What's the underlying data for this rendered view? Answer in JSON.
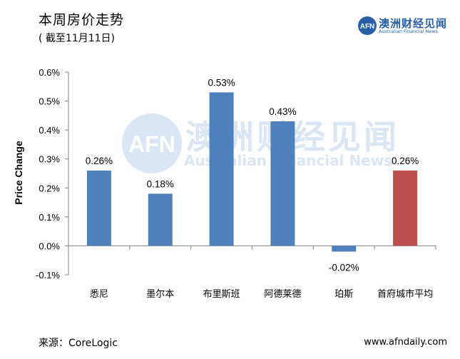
{
  "title": "本周房价走势",
  "subtitle": "( 截至11月11日)",
  "logo": {
    "mark": "AFN",
    "name_cn": "澳洲财经见闻",
    "name_en": "Australian Financial News"
  },
  "watermark": {
    "mark": "AFN",
    "name_cn": "澳洲财经见闻",
    "name_en": "Australian Financial News"
  },
  "source": "来源：CoreLogic",
  "website": "www.afndaily.com",
  "colors": {
    "bar": "#4f81bd",
    "highlight_bar": "#c0504d",
    "logo_blue": "#2a5fa7"
  },
  "chart_data": {
    "type": "bar",
    "title": "",
    "xlabel": "",
    "ylabel": "Price Change",
    "categories": [
      "悉尼",
      "墨尔本",
      "布里斯班",
      "阿德莱德",
      "珀斯",
      "首府城市平均"
    ],
    "values": [
      0.26,
      0.18,
      0.53,
      0.43,
      -0.02,
      0.26
    ],
    "data_labels": [
      "0.26%",
      "0.18%",
      "0.53%",
      "0.43%",
      "-0.02%",
      "0.26%"
    ],
    "highlight_index": 5,
    "ylim": [
      -0.1,
      0.6
    ],
    "yticks": [
      -0.1,
      0.0,
      0.1,
      0.2,
      0.3,
      0.4,
      0.5,
      0.6
    ],
    "ytick_labels": [
      "-0.1%",
      "0.0%",
      "0.1%",
      "0.2%",
      "0.3%",
      "0.4%",
      "0.5%",
      "0.6%"
    ],
    "grid": false,
    "legend": "none"
  }
}
